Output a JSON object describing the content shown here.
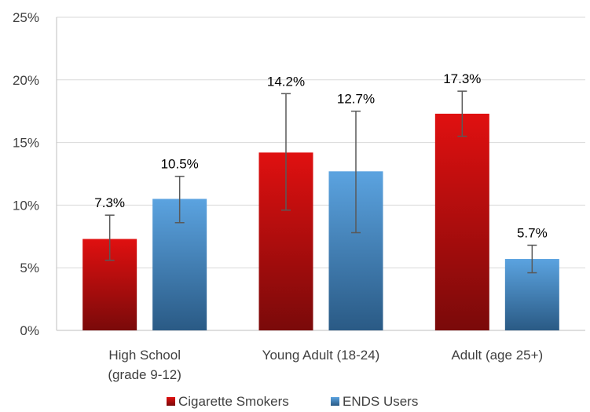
{
  "chart_data": {
    "type": "bar",
    "title": "",
    "xlabel": "",
    "ylabel": "",
    "ylim": [
      0,
      25
    ],
    "y_ticks": [
      0,
      5,
      10,
      15,
      20,
      25
    ],
    "y_tick_format": "%",
    "categories": [
      [
        "High School",
        "(grade 9-12)"
      ],
      [
        "Young Adult (18-24)"
      ],
      [
        "Adult (age 25+)"
      ]
    ],
    "series": [
      {
        "name": "Cigarette Smokers",
        "values": [
          7.3,
          14.2,
          17.3
        ],
        "labels": [
          "7.3%",
          "14.2%",
          "17.3%"
        ],
        "error_low": [
          5.6,
          9.6,
          15.5
        ],
        "error_high": [
          9.2,
          18.9,
          19.1
        ],
        "color_top": "#e01010",
        "color_bottom": "#7a0a0a"
      },
      {
        "name": "ENDS Users",
        "values": [
          10.5,
          12.7,
          5.7
        ],
        "labels": [
          "10.5%",
          "12.7%",
          "5.7%"
        ],
        "error_low": [
          8.6,
          7.8,
          4.6
        ],
        "error_high": [
          12.3,
          17.5,
          6.8
        ],
        "color_top": "#5ba3e0",
        "color_bottom": "#2a5a85"
      }
    ],
    "grid": true,
    "legend_position": "bottom",
    "colors": {
      "grid": "#d9d9d9",
      "axis": "#bfbfbf",
      "error_bar": "#595959"
    }
  }
}
